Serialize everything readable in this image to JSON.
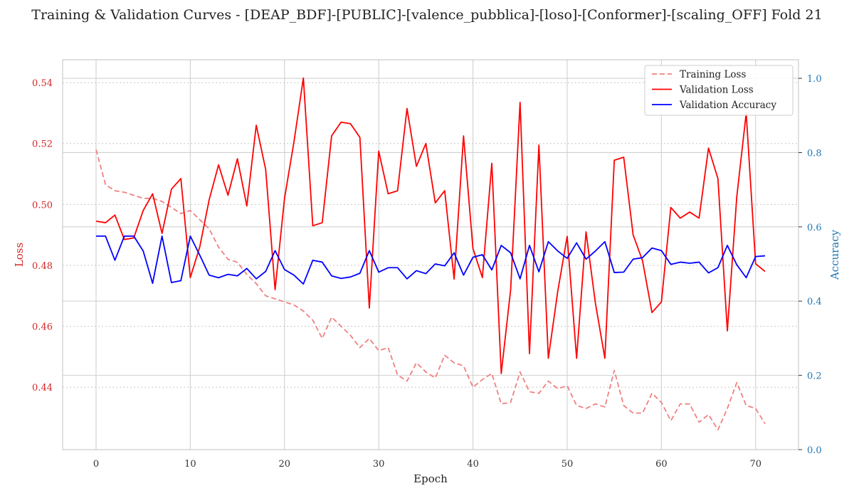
{
  "chart_data": {
    "type": "line",
    "title": "Training & Validation Curves - [DEAP_BDF]-[PUBLIC]-[valence_pubblica]-[loso]-[Conformer]-[scaling_OFF] Fold 21",
    "xlabel": "Epoch",
    "ylabel_left": "Loss",
    "ylabel_right": "Accuracy",
    "xlim": [
      -3.55,
      74.55
    ],
    "ylim_left": [
      0.4195,
      0.5475
    ],
    "ylim_right": [
      0.0,
      1.05
    ],
    "x_ticks": [
      0,
      10,
      20,
      30,
      40,
      50,
      60,
      70
    ],
    "y_left_ticks": [
      0.44,
      0.46,
      0.48,
      0.5,
      0.52,
      0.54
    ],
    "y_left_tick_labels": [
      "0.44",
      "0.46",
      "0.48",
      "0.50",
      "0.52",
      "0.54"
    ],
    "y_right_ticks": [
      0.0,
      0.2,
      0.4,
      0.6,
      0.8,
      1.0
    ],
    "y_right_tick_labels": [
      "0.0",
      "0.2",
      "0.4",
      "0.6",
      "0.8",
      "1.0"
    ],
    "grid": true,
    "legend_position": "top-right",
    "colors": {
      "training_loss": "#f08080",
      "validation_loss": "#ff0000",
      "validation_accuracy": "#0000ff",
      "left_axis": "#d62728",
      "right_axis": "#1f77b4"
    },
    "x": [
      0,
      1,
      2,
      3,
      4,
      5,
      6,
      7,
      8,
      9,
      10,
      11,
      12,
      13,
      14,
      15,
      16,
      17,
      18,
      19,
      20,
      21,
      22,
      23,
      24,
      25,
      26,
      27,
      28,
      29,
      30,
      31,
      32,
      33,
      34,
      35,
      36,
      37,
      38,
      39,
      40,
      41,
      42,
      43,
      44,
      45,
      46,
      47,
      48,
      49,
      50,
      51,
      52,
      53,
      54,
      55,
      56,
      57,
      58,
      59,
      60,
      61,
      62,
      63,
      64,
      65,
      66,
      67,
      68,
      69,
      70,
      71
    ],
    "series": [
      {
        "name": "Training Loss",
        "axis": "left",
        "style": "dashed",
        "values": [
          0.518,
          0.5065,
          0.5045,
          0.504,
          0.503,
          0.502,
          0.502,
          0.501,
          0.499,
          0.497,
          0.498,
          0.495,
          0.492,
          0.486,
          0.482,
          0.481,
          0.477,
          0.474,
          0.47,
          0.469,
          0.468,
          0.467,
          0.465,
          0.462,
          0.456,
          0.463,
          0.46,
          0.457,
          0.453,
          0.456,
          0.452,
          0.453,
          0.444,
          0.442,
          0.448,
          0.445,
          0.443,
          0.4505,
          0.448,
          0.447,
          0.44,
          0.4425,
          0.4445,
          0.4345,
          0.435,
          0.445,
          0.4385,
          0.438,
          0.442,
          0.4395,
          0.4405,
          0.434,
          0.433,
          0.4345,
          0.4335,
          0.4455,
          0.434,
          0.4315,
          0.4315,
          0.438,
          0.435,
          0.429,
          0.4345,
          0.4345,
          0.4285,
          0.431,
          0.426,
          0.433,
          0.4415,
          0.434,
          0.433,
          0.428
        ]
      },
      {
        "name": "Validation Loss",
        "axis": "left",
        "style": "solid",
        "values": [
          0.4945,
          0.494,
          0.4965,
          0.4885,
          0.489,
          0.498,
          0.5035,
          0.4905,
          0.505,
          0.5085,
          0.476,
          0.486,
          0.5015,
          0.513,
          0.503,
          0.515,
          0.4995,
          0.526,
          0.5115,
          0.472,
          0.502,
          0.5205,
          0.5415,
          0.493,
          0.494,
          0.5225,
          0.527,
          0.5265,
          0.522,
          0.466,
          0.5175,
          0.5035,
          0.5045,
          0.5315,
          0.5125,
          0.52,
          0.5005,
          0.5045,
          0.4755,
          0.5225,
          0.4855,
          0.476,
          0.5135,
          0.4445,
          0.472,
          0.5335,
          0.451,
          0.5195,
          0.4495,
          0.4715,
          0.4895,
          0.4495,
          0.491,
          0.4675,
          0.4495,
          0.5145,
          0.5155,
          0.49,
          0.4815,
          0.4645,
          0.468,
          0.499,
          0.4955,
          0.4975,
          0.4955,
          0.5185,
          0.5085,
          0.4585,
          0.5025,
          0.53,
          0.4805,
          0.478
        ]
      },
      {
        "name": "Validation Accuracy",
        "axis": "right",
        "style": "solid",
        "values": [
          0.575,
          0.575,
          0.51,
          0.575,
          0.575,
          0.535,
          0.448,
          0.575,
          0.45,
          0.455,
          0.575,
          0.524,
          0.47,
          0.463,
          0.472,
          0.468,
          0.488,
          0.46,
          0.48,
          0.536,
          0.485,
          0.47,
          0.446,
          0.51,
          0.505,
          0.468,
          0.461,
          0.465,
          0.475,
          0.536,
          0.478,
          0.49,
          0.49,
          0.46,
          0.482,
          0.474,
          0.5,
          0.495,
          0.53,
          0.47,
          0.518,
          0.525,
          0.484,
          0.55,
          0.53,
          0.46,
          0.55,
          0.479,
          0.56,
          0.535,
          0.515,
          0.557,
          0.513,
          0.535,
          0.56,
          0.477,
          0.478,
          0.513,
          0.517,
          0.543,
          0.536,
          0.499,
          0.505,
          0.502,
          0.505,
          0.476,
          0.49,
          0.55,
          0.498,
          0.463,
          0.52,
          0.522
        ]
      }
    ]
  }
}
